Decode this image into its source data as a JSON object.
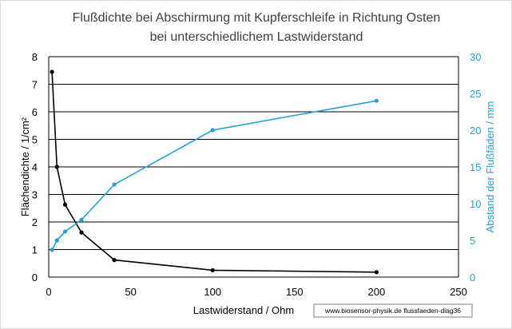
{
  "chart_data": {
    "type": "line",
    "title": "Flußdichte bei Abschirmung mit Kupferschleife in Richtung Osten",
    "subtitle": "bei unterschiedlichem Lastwiderstand",
    "xlabel": "Lastwiderstand / Ohm",
    "ylabel_left": "Flächendichte / 1/cm²",
    "ylabel_right": "Abstand der Flußfäden / mm",
    "xlim": [
      0,
      250
    ],
    "ylim_left": [
      0,
      8
    ],
    "ylim_right": [
      0,
      30
    ],
    "x_ticks": [
      "0",
      "50",
      "100",
      "150",
      "200",
      "250"
    ],
    "y_ticks_left": [
      "0",
      "1",
      "2",
      "3",
      "4",
      "5",
      "6",
      "7",
      "8"
    ],
    "y_ticks_right": [
      "0",
      "5",
      "10",
      "15",
      "20",
      "25",
      "30"
    ],
    "grid": "horizontal",
    "source_note": "www.biosensor-physik.de  flussfaeden-diag36",
    "series": [
      {
        "axis": "left",
        "color": "#000000",
        "x": [
          2,
          5,
          10,
          20,
          40,
          100,
          200
        ],
        "values": [
          7.45,
          4.0,
          2.63,
          1.62,
          0.62,
          0.25,
          0.18
        ]
      },
      {
        "axis": "right",
        "color": "#1fa3d6",
        "x": [
          2,
          5,
          10,
          20,
          40,
          100,
          200
        ],
        "values": [
          3.7,
          5.0,
          6.2,
          7.8,
          12.6,
          20.0,
          24.0
        ]
      }
    ]
  }
}
